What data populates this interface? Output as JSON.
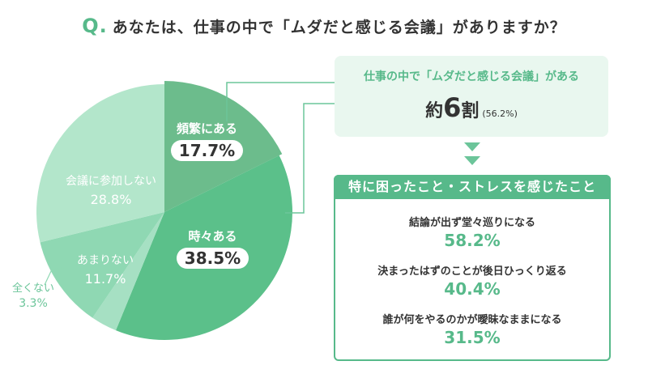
{
  "title": {
    "q": "Q.",
    "text": "あなたは、仕事の中で「ムダだと感じる会議」がありますか？"
  },
  "chart_data": {
    "type": "pie",
    "slices": [
      {
        "label": "頻繁にある",
        "value": 17.7,
        "value_label": "17.7%",
        "color": "#6cbc8c"
      },
      {
        "label": "時々ある",
        "value": 38.5,
        "value_label": "38.5%",
        "color": "#5bc08a"
      },
      {
        "label": "全くない",
        "value": 3.3,
        "value_label": "3.3%",
        "color": "#a6e0c3"
      },
      {
        "label": "あまりない",
        "value": 11.7,
        "value_label": "11.7%",
        "color": "#8fd8b3"
      },
      {
        "label": "会議に参加しない",
        "value": 28.8,
        "value_label": "28.8%",
        "color": "#b3e6cb"
      }
    ]
  },
  "callout": {
    "heading": "仕事の中で「ムダだと感じる会議」がある",
    "prefix": "約",
    "number": "6",
    "suffix": "割",
    "paren": "(56.2%)"
  },
  "stress": {
    "heading": "特に困ったこと・ストレスを感じたこと",
    "items": [
      {
        "text": "結論が出ず堂々巡りになる",
        "value": "58.2%"
      },
      {
        "text": "決まったはずのことが後日ひっくり返る",
        "value": "40.4%"
      },
      {
        "text": "誰が何をやるのかが曖昧なままになる",
        "value": "31.5%"
      }
    ]
  }
}
